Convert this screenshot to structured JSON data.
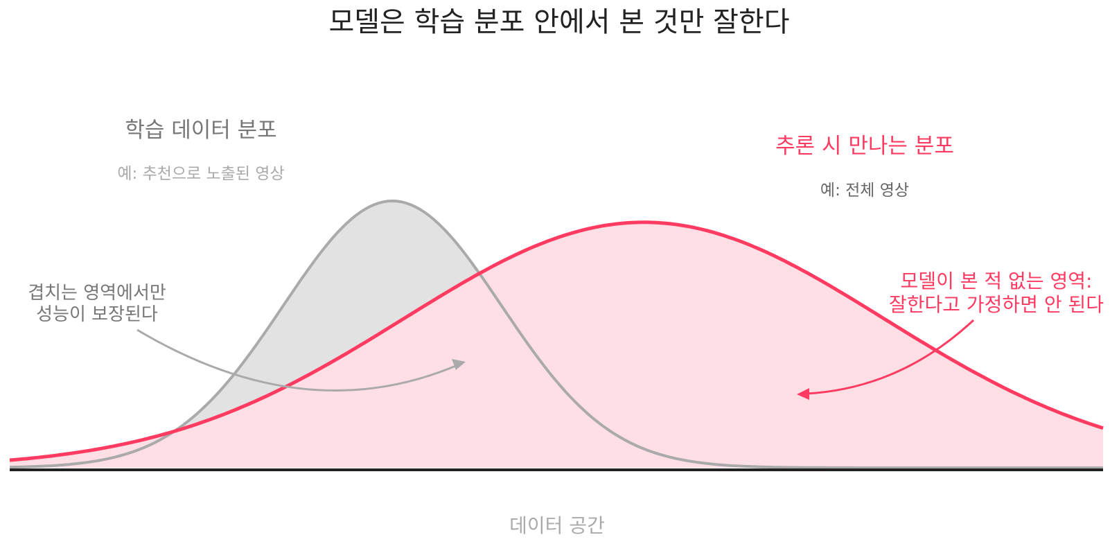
{
  "title": "모델은 학습 분포 안에서 본 것만 잘한다",
  "training": {
    "label": "학습 데이터 분포",
    "example": "예: 추천으로 노출된 영상",
    "overlap_line1": "겹치는 영역에서만",
    "overlap_line2": "성능이 보장된다"
  },
  "inference": {
    "label": "추론 시 만나는 분포",
    "example": "예: 전체 영상",
    "warning_line1": "모델이 본 적 없는 영역:",
    "warning_line2": "잘한다고 가정하면 안 된다"
  },
  "x_axis_label": "데이터 공간",
  "colors": {
    "title": "#222222",
    "training_stroke": "#aaaaaa",
    "training_fill": "#e2e2e2",
    "training_text": "#777777",
    "training_subtext": "#aaaaaa",
    "inference_stroke": "#ff3b62",
    "inference_fill": "#ffdfe6",
    "inference_text": "#ff3b62",
    "inference_subtext": "#666666",
    "axis": "#222222",
    "axis_label": "#aaaaaa"
  },
  "chart_data": {
    "type": "area",
    "x_range": [
      0,
      1
    ],
    "series": [
      {
        "name": "학습 데이터 분포",
        "mean": 0.35,
        "sd": 0.1,
        "peak": 1.0
      },
      {
        "name": "추론 시 만나는 분포",
        "mean": 0.58,
        "sd": 0.22,
        "peak": 0.92
      }
    ]
  }
}
